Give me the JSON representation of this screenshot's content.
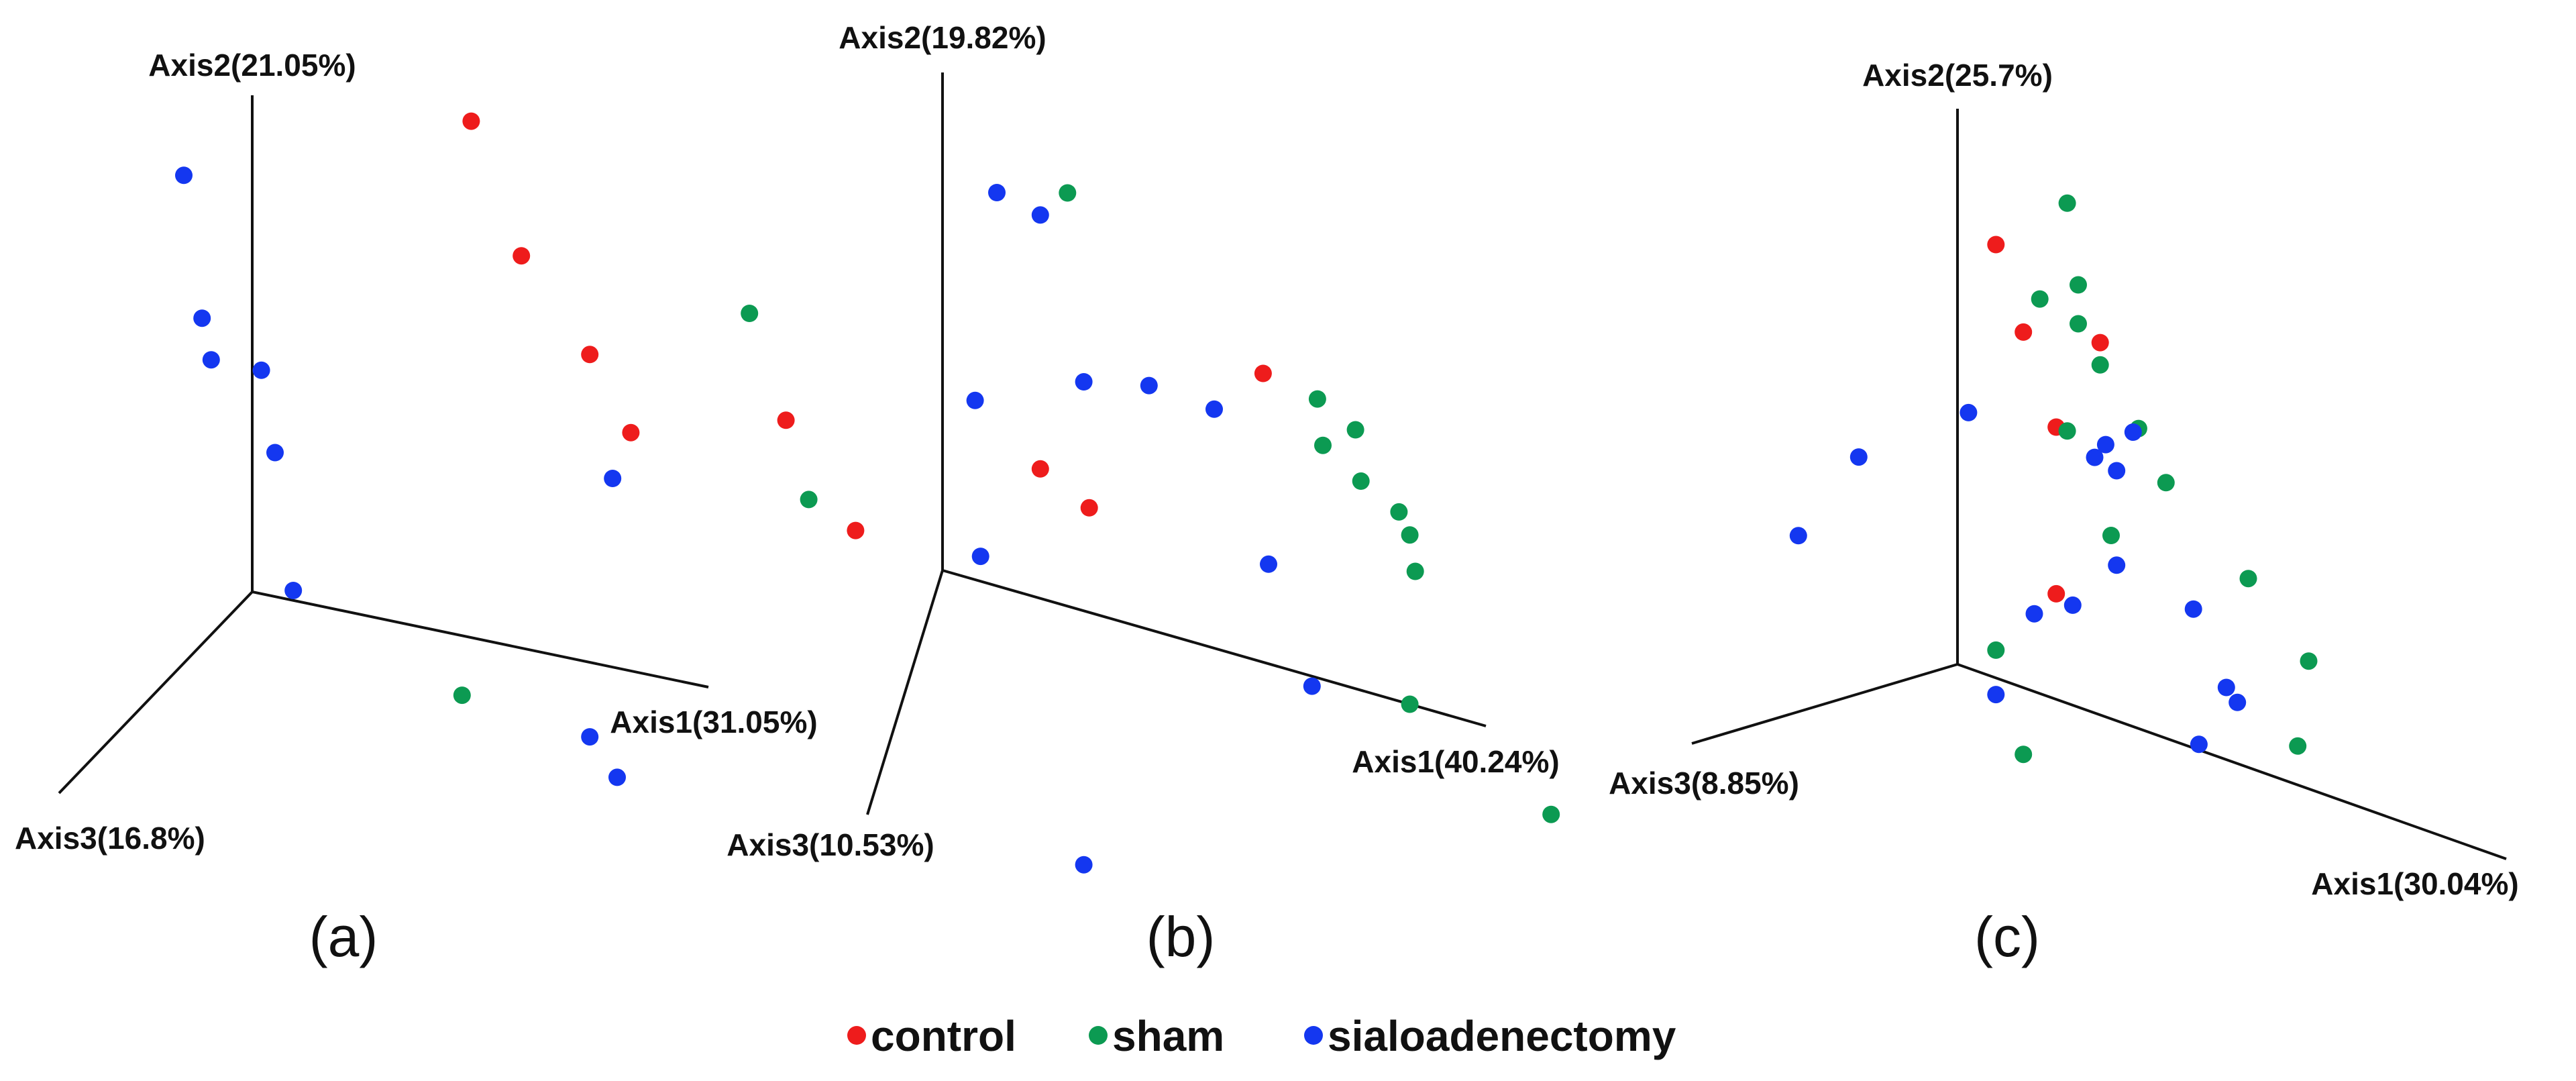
{
  "chart_data": [
    {
      "type": "scatter",
      "panel_label": "(a)",
      "axes": {
        "axis1": "Axis1(31.05%)",
        "axis2": "Axis2(21.05%)",
        "axis3": "Axis3(16.8%)"
      },
      "series": [
        {
          "name": "control",
          "color": "#ee1c1c",
          "points": [
            [
              0.48,
              1.04
            ],
            [
              0.59,
              0.79
            ],
            [
              0.74,
              0.62
            ],
            [
              0.83,
              0.48
            ],
            [
              1.17,
              0.57
            ]
          ]
        },
        {
          "name": "sham",
          "color": "#0c9a52",
          "points": [
            [
              1.09,
              0.77
            ],
            [
              1.22,
              0.42
            ],
            [
              0.46,
              -0.12
            ]
          ]
        },
        {
          "name": "sialoadenectomy",
          "color": "#1437f0",
          "points": [
            [
              -0.15,
              0.81
            ],
            [
              -0.11,
              0.53
            ],
            [
              -0.09,
              0.45
            ],
            [
              0.02,
              0.45
            ],
            [
              0.05,
              0.29
            ],
            [
              0.09,
              0.02
            ],
            [
              0.79,
              0.38
            ],
            [
              0.74,
              -0.15
            ],
            [
              0.8,
              -0.22
            ]
          ]
        }
      ]
    },
    {
      "type": "scatter",
      "panel_label": "(b)",
      "axes": {
        "axis1": "Axis1(40.24%)",
        "axis2": "Axis2(19.82%)",
        "axis3": "Axis3(10.53%)"
      },
      "series": [
        {
          "name": "control",
          "color": "#ee1c1c",
          "points": [
            [
              0.59,
              0.58
            ],
            [
              0.18,
              0.26
            ],
            [
              0.27,
              0.21
            ],
            [
              -0.16,
              0.03
            ]
          ]
        },
        {
          "name": "sham",
          "color": "#0c9a52",
          "points": [
            [
              0.23,
              0.83
            ],
            [
              0.69,
              0.56
            ],
            [
              0.76,
              0.52
            ],
            [
              0.7,
              0.47
            ],
            [
              0.77,
              0.42
            ],
            [
              0.84,
              0.38
            ],
            [
              0.86,
              0.34
            ],
            [
              0.87,
              0.27
            ],
            [
              0.86,
              0.0
            ],
            [
              1.12,
              -0.14
            ]
          ]
        },
        {
          "name": "sialoadenectomy",
          "color": "#1437f0",
          "points": [
            [
              0.1,
              0.79
            ],
            [
              0.18,
              0.77
            ],
            [
              0.26,
              0.46
            ],
            [
              0.38,
              0.49
            ],
            [
              0.5,
              0.48
            ],
            [
              0.6,
              0.2
            ],
            [
              0.68,
              -0.02
            ],
            [
              0.06,
              0.36
            ],
            [
              0.07,
              0.05
            ],
            [
              0.26,
              -0.51
            ]
          ]
        }
      ]
    },
    {
      "type": "scatter",
      "panel_label": "(c)",
      "axes": {
        "axis1": "Axis1(30.04%)",
        "axis2": "Axis2(25.7%)",
        "axis3": "Axis3(8.85%)"
      },
      "series": [
        {
          "name": "control",
          "color": "#ee1c1c",
          "points": [
            [
              0.07,
              0.78
            ],
            [
              0.12,
              0.64
            ],
            [
              0.26,
              0.67
            ],
            [
              0.18,
              0.49
            ],
            [
              0.18,
              0.19
            ]
          ]
        },
        {
          "name": "sham",
          "color": "#0c9a52",
          "points": [
            [
              0.2,
              0.9
            ],
            [
              0.22,
              0.76
            ],
            [
              0.15,
              0.71
            ],
            [
              0.22,
              0.69
            ],
            [
              0.26,
              0.63
            ],
            [
              0.2,
              0.49
            ],
            [
              0.33,
              0.54
            ],
            [
              0.38,
              0.46
            ],
            [
              0.28,
              0.33
            ],
            [
              0.53,
              0.34
            ],
            [
              0.64,
              0.23
            ],
            [
              0.62,
              0.07
            ],
            [
              0.07,
              0.05
            ],
            [
              0.12,
              -0.12
            ]
          ]
        },
        {
          "name": "sialoadenectomy",
          "color": "#1437f0",
          "points": [
            [
              0.02,
              0.46
            ],
            [
              0.32,
              0.53
            ],
            [
              0.27,
              0.49
            ],
            [
              0.29,
              0.45
            ],
            [
              0.25,
              0.46
            ],
            [
              0.29,
              0.28
            ],
            [
              0.21,
              0.18
            ],
            [
              0.14,
              0.14
            ],
            [
              0.43,
              0.25
            ],
            [
              0.49,
              0.13
            ],
            [
              0.51,
              0.11
            ],
            [
              -0.18,
              0.31
            ],
            [
              -0.29,
              0.13
            ],
            [
              0.44,
              0.01
            ],
            [
              0.07,
              -0.03
            ]
          ]
        }
      ]
    }
  ],
  "legend": [
    {
      "name": "control",
      "color": "#ee1c1c"
    },
    {
      "name": "sham",
      "color": "#0c9a52"
    },
    {
      "name": "sialoadenectomy",
      "color": "#1437f0"
    }
  ]
}
